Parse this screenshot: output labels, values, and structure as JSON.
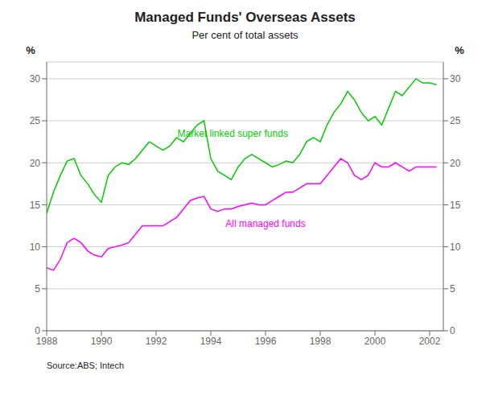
{
  "chart_data": {
    "type": "line",
    "title": "Managed Funds' Overseas Assets",
    "subtitle": "Per cent of total assets",
    "source": "Source:ABS; Intech",
    "ylabel": "%",
    "y2label": "%",
    "xlim": [
      1988.0,
      2002.5
    ],
    "xticks": [
      1988,
      1990,
      1992,
      1994,
      1996,
      1998,
      2000,
      2002
    ],
    "ylim": [
      0,
      32
    ],
    "yticks": [
      0,
      5,
      10,
      15,
      20,
      25,
      30
    ],
    "y2lim": [
      0,
      32
    ],
    "y2ticks": [
      0,
      5,
      10,
      15,
      20,
      25,
      30
    ],
    "grid": "y",
    "x": [
      1988.0,
      1988.25,
      1988.5,
      1988.75,
      1989.0,
      1989.25,
      1989.5,
      1989.75,
      1990.0,
      1990.25,
      1990.5,
      1990.75,
      1991.0,
      1991.25,
      1991.5,
      1991.75,
      1992.0,
      1992.25,
      1992.5,
      1992.75,
      1993.0,
      1993.25,
      1993.5,
      1993.75,
      1994.0,
      1994.25,
      1994.5,
      1994.75,
      1995.0,
      1995.25,
      1995.5,
      1995.75,
      1996.0,
      1996.25,
      1996.5,
      1996.75,
      1997.0,
      1997.25,
      1997.5,
      1997.75,
      1998.0,
      1998.25,
      1998.5,
      1998.75,
      1999.0,
      1999.25,
      1999.5,
      1999.75,
      2000.0,
      2000.25,
      2000.5,
      2000.75,
      2001.0,
      2001.25,
      2001.5,
      2001.75,
      2002.0,
      2002.25
    ],
    "series": [
      {
        "color": "#00CC00",
        "values": [
          14.0,
          16.5,
          18.5,
          20.2,
          20.5,
          18.5,
          17.5,
          16.2,
          15.3,
          18.5,
          19.5,
          20.0,
          19.8,
          20.5,
          21.5,
          22.5,
          22.0,
          21.5,
          22.0,
          23.0,
          22.5,
          23.5,
          24.5,
          25.0,
          20.5,
          19.0,
          18.5,
          18.0,
          19.5,
          20.5,
          21.0,
          20.5,
          20.0,
          19.5,
          19.8,
          20.2,
          20.0,
          21.0,
          22.5,
          23.0,
          22.5,
          24.5,
          26.0,
          27.0,
          28.5,
          27.5,
          26.0,
          25.0,
          25.5,
          24.5,
          26.5,
          28.5,
          28.0,
          29.0,
          30.0,
          29.5,
          29.5,
          29.3
        ]
      },
      {
        "color": "#FF00FF",
        "values": [
          7.5,
          7.2,
          8.5,
          10.5,
          11.0,
          10.5,
          9.5,
          9.0,
          8.8,
          9.8,
          10.0,
          10.2,
          10.5,
          11.5,
          12.5,
          12.5,
          12.5,
          12.5,
          13.0,
          13.5,
          14.5,
          15.5,
          15.8,
          16.0,
          14.5,
          14.2,
          14.5,
          14.5,
          14.8,
          15.0,
          15.2,
          15.0,
          15.0,
          15.5,
          16.0,
          16.5,
          16.5,
          17.0,
          17.5,
          17.5,
          17.5,
          18.5,
          19.5,
          20.5,
          20.0,
          18.5,
          18.0,
          18.5,
          20.0,
          19.5,
          19.5,
          20.0,
          19.5,
          19.0,
          19.5,
          19.5,
          19.5,
          19.5
        ]
      }
    ],
    "annotations": [
      {
        "text": "Market linked super funds",
        "x": 1994.8,
        "y": 23.5,
        "color": "#00CC00"
      },
      {
        "text": "All managed funds",
        "x": 1996.0,
        "y": 12.8,
        "color": "#FF00FF"
      }
    ]
  }
}
